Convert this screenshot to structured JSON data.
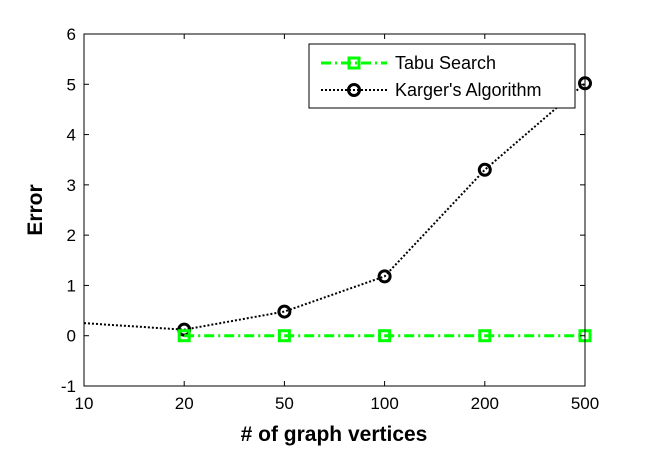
{
  "chart_data": {
    "type": "line",
    "categories": [
      "10",
      "20",
      "50",
      "100",
      "200",
      "500"
    ],
    "xlabel": "# of graph vertices",
    "ylabel": "Error",
    "ylim": [
      -1,
      6
    ],
    "yticks": [
      "-1",
      "0",
      "1",
      "2",
      "3",
      "4",
      "5",
      "6"
    ],
    "grid": false,
    "legend_position": "top-right",
    "series": [
      {
        "name": "Tabu Search",
        "color": "#00ff00",
        "line_style": "dash-dot",
        "marker": "square",
        "x": [
          20,
          50,
          100,
          200,
          500
        ],
        "values": [
          0,
          0,
          0,
          0,
          0
        ]
      },
      {
        "name": "Karger's Algorithm",
        "color": "#000000",
        "line_style": "dotted",
        "marker": "circle",
        "x": [
          10,
          20,
          50,
          100,
          200,
          500
        ],
        "values": [
          0.25,
          0.12,
          0.48,
          1.18,
          3.3,
          5.02
        ]
      }
    ]
  }
}
